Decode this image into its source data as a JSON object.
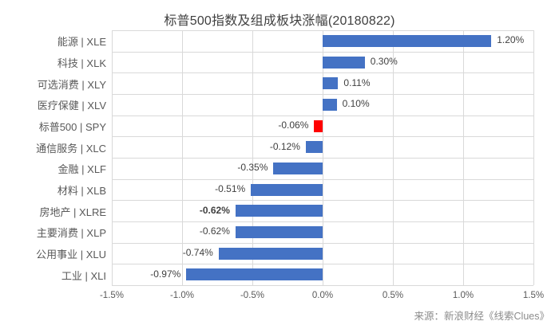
{
  "title": "标普500指数及组成板块涨幅(20180822)",
  "source": "来源：新浪财经《线索Clues》",
  "colors": {
    "bar": "#4472C4",
    "highlight_bar": "#FF0000",
    "gridline": "#D9D9D9",
    "title_text": "#404040",
    "value_text": "#404040",
    "axis_text": "#595959",
    "source_text": "#8C8C8C"
  },
  "chart_data": {
    "type": "bar",
    "orientation": "horizontal",
    "title": "标普500指数及组成板块涨幅(20180822)",
    "categories": [
      "能源 | XLE",
      "科技 | XLK",
      "可选消费 | XLY",
      "医疗保健 | XLV",
      "标普500 | SPY",
      "通信服务 | XLC",
      "金融 | XLF",
      "材料 | XLB",
      "房地产 | XLRE",
      "主要消费 | XLP",
      "公用事业 | XLU",
      "工业 | XLI"
    ],
    "values": [
      1.2,
      0.3,
      0.11,
      0.1,
      -0.06,
      -0.12,
      -0.35,
      -0.51,
      -0.62,
      -0.62,
      -0.74,
      -0.97
    ],
    "value_labels": [
      "1.20%",
      "0.30%",
      "0.11%",
      "0.10%",
      "-0.06%",
      "-0.12%",
      "-0.35%",
      "-0.51%",
      "-0.62%",
      "-0.62%",
      "-0.74%",
      "-0.97%"
    ],
    "highlight_index": 4,
    "bold_label_index": 8,
    "xlabel": "",
    "ylabel": "",
    "xlim": [
      -1.5,
      1.5
    ],
    "x_ticks": [
      "-1.5%",
      "-1.0%",
      "-0.5%",
      "0.0%",
      "0.5%",
      "1.0%",
      "1.5%"
    ],
    "x_tick_values": [
      -1.5,
      -1.0,
      -0.5,
      0.0,
      0.5,
      1.0,
      1.5
    ],
    "grid": true,
    "legend": "none"
  }
}
